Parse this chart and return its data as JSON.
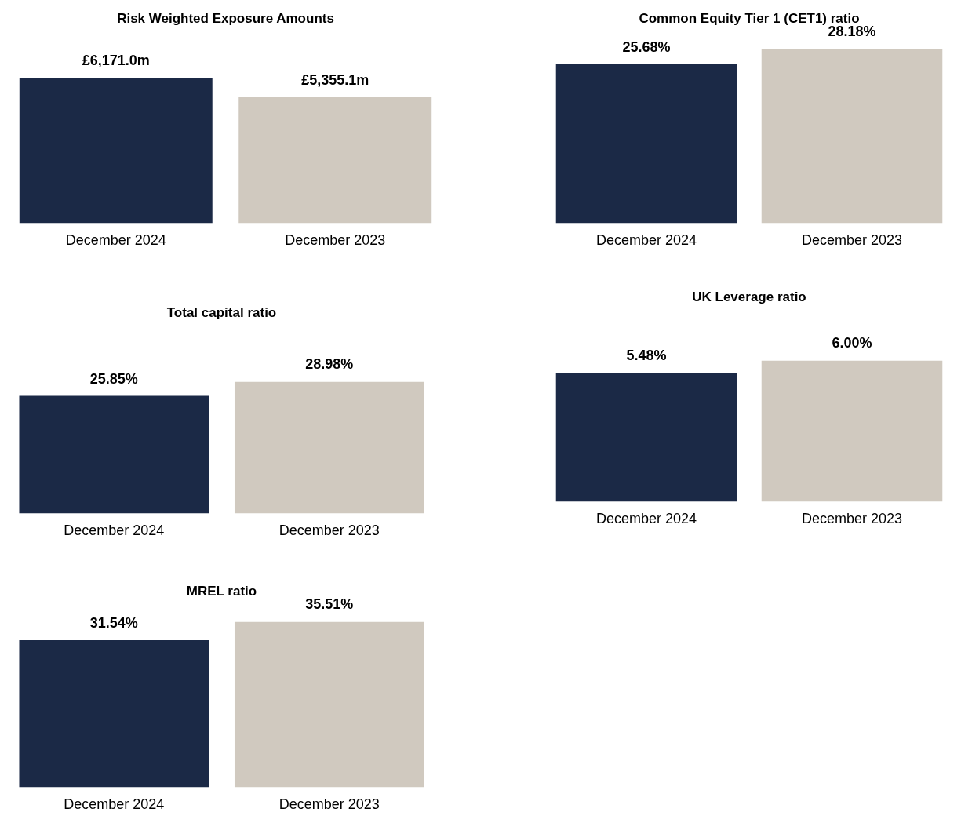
{
  "chart_data": [
    {
      "type": "bar",
      "title": "Risk Weighted Exposure Amounts",
      "categories": [
        "December 2024",
        "December 2023"
      ],
      "values": [
        6171.0,
        5355.1
      ],
      "colors": [
        "#1b2946",
        "#d0c9bf"
      ],
      "value_labels": [
        "£6,171.0m",
        "£5,355.1m"
      ]
    },
    {
      "type": "bar",
      "title": "Common Equity Tier 1 (CET1) ratio",
      "categories": [
        "December 2024",
        "December 2023"
      ],
      "values": [
        25.68,
        28.18
      ],
      "colors": [
        "#1b2946",
        "#d0c9bf"
      ],
      "value_labels": [
        "25.68%",
        "28.18%"
      ]
    },
    {
      "type": "bar",
      "title": "Total capital ratio",
      "categories": [
        "December 2024",
        "December 2023"
      ],
      "values": [
        25.85,
        28.98
      ],
      "colors": [
        "#1b2946",
        "#d0c9bf"
      ],
      "value_labels": [
        "25.85%",
        "28.98%"
      ]
    },
    {
      "type": "bar",
      "title": "UK Leverage ratio",
      "categories": [
        "December 2024",
        "December 2023"
      ],
      "values": [
        5.48,
        6.0
      ],
      "colors": [
        "#1b2946",
        "#d0c9bf"
      ],
      "value_labels": [
        "5.48%",
        "6.00%"
      ]
    },
    {
      "type": "bar",
      "title": "MREL ratio",
      "categories": [
        "December 2024",
        "December 2023"
      ],
      "values": [
        31.54,
        35.51
      ],
      "colors": [
        "#1b2946",
        "#d0c9bf"
      ],
      "value_labels": [
        "31.54%",
        "35.51%"
      ]
    }
  ]
}
